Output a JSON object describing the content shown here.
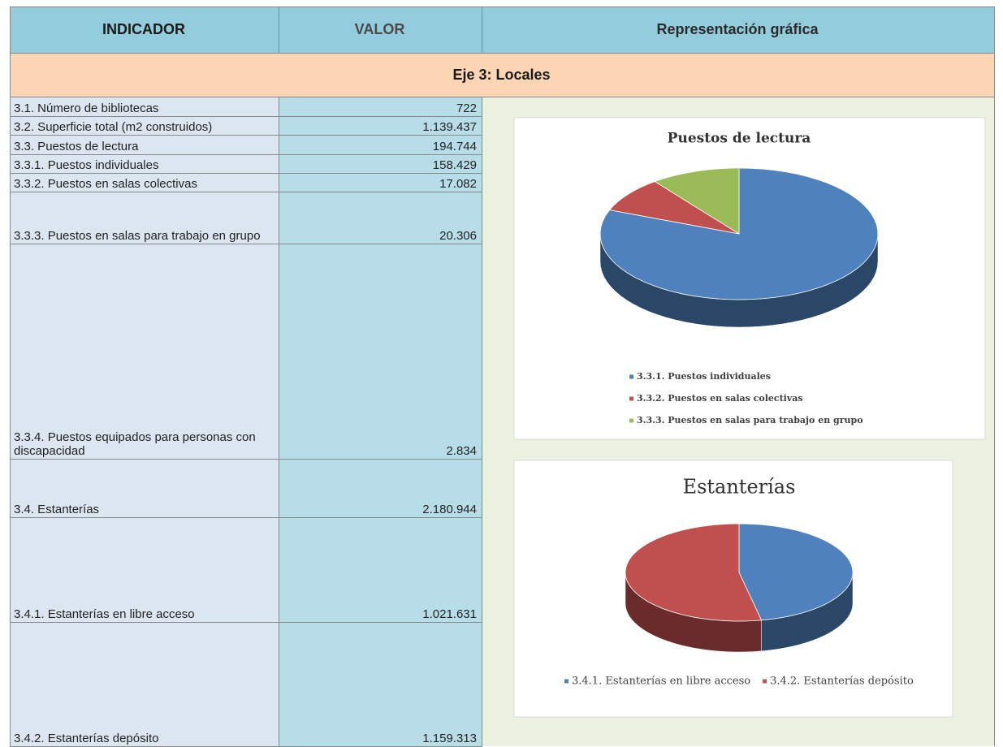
{
  "table": {
    "headers": [
      "INDICADOR",
      "VALOR",
      "Representación gráfica"
    ],
    "section": "Eje 3: Locales",
    "rows": [
      [
        "3.1. Número de bibliotecas",
        "722"
      ],
      [
        "3.2. Superficie total (m2 construidos)",
        "1.139.437"
      ],
      [
        "3.3. Puestos de lectura",
        "194.744"
      ],
      [
        "3.3.1. Puestos individuales",
        "158.429"
      ],
      [
        "3.3.2. Puestos en salas colectivas",
        "17.082"
      ],
      [
        "3.3.3. Puestos en salas para trabajo en grupo",
        "20.306"
      ],
      [
        "3.3.4. Puestos equipados para personas con discapacidad",
        "2.834"
      ],
      [
        "3.4. Estanterías",
        "2.180.944"
      ],
      [
        "3.4.1. Estanterías en libre acceso",
        "1.021.631"
      ],
      [
        "3.4.2. Estanterías depósito",
        "1.159.313"
      ]
    ]
  },
  "chart_data": [
    {
      "type": "pie",
      "title": "Puestos de lectura",
      "categories": [
        "3.3.1. Puestos individuales",
        "3.3.2. Puestos en salas colectivas",
        "3.3.3. Puestos en salas para trabajo en grupo"
      ],
      "values": [
        158429,
        17082,
        20306
      ],
      "colors": [
        "#4f81bd",
        "#c0504d",
        "#9bbb59"
      ],
      "legend": "vertical"
    },
    {
      "type": "pie",
      "title": "Estanterías",
      "categories": [
        "3.4.1. Estanterías en libre acceso",
        "3.4.2. Estanterías depósito"
      ],
      "values": [
        1021631,
        1159313
      ],
      "colors": [
        "#4f81bd",
        "#c0504d"
      ],
      "legend": "horizontal"
    }
  ]
}
